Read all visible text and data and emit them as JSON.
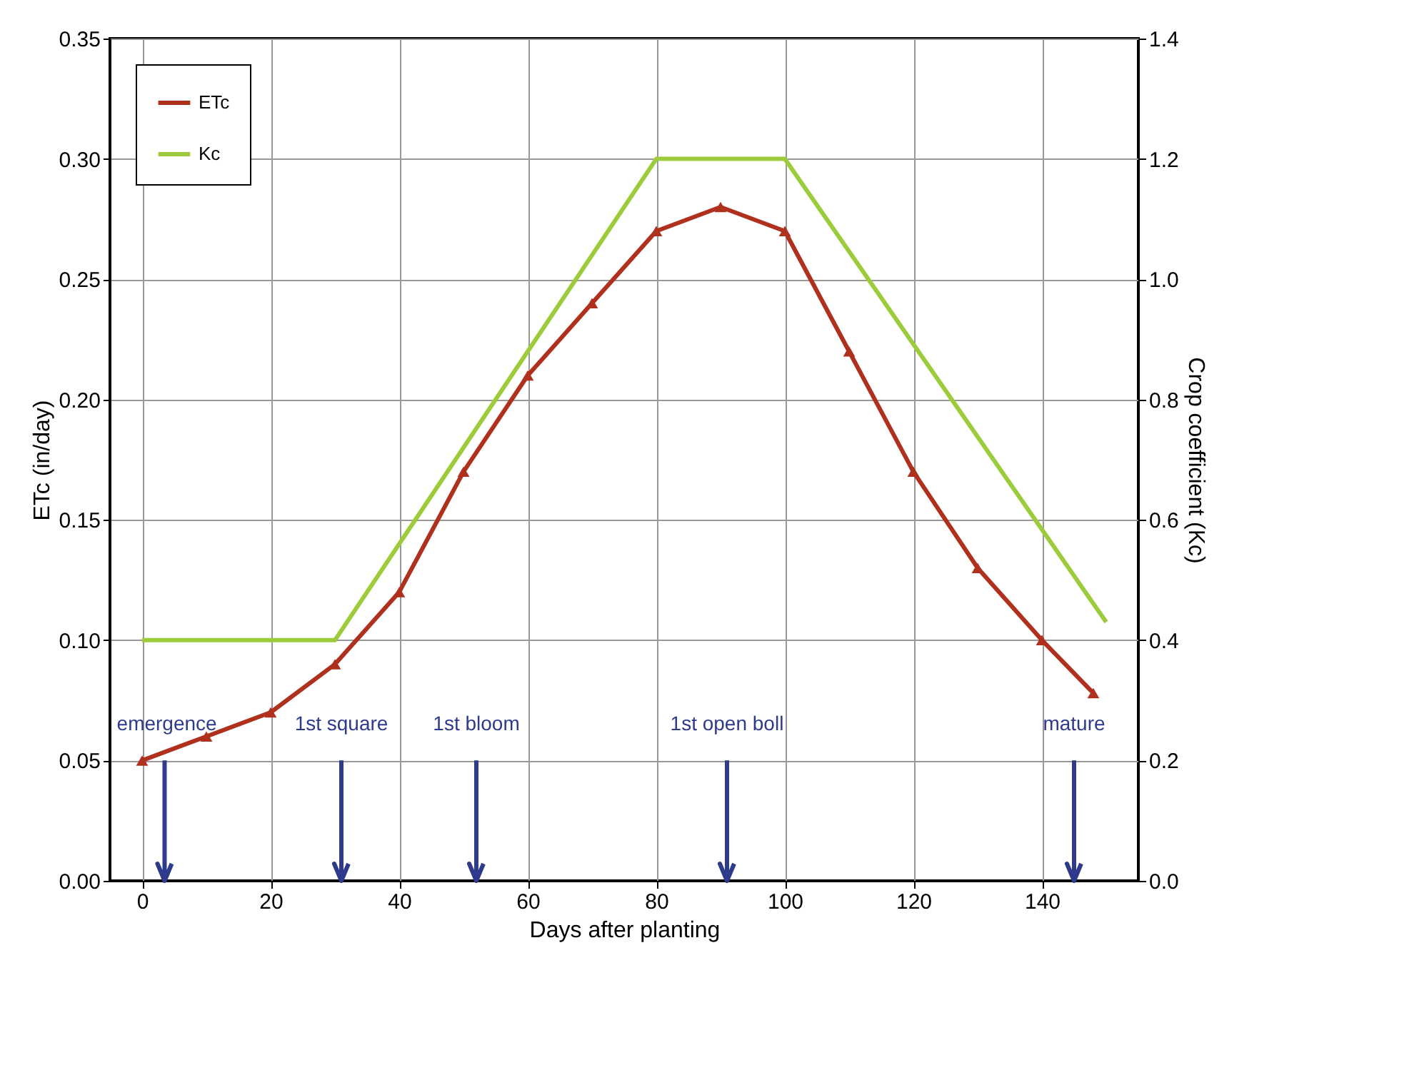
{
  "chart_data": {
    "type": "line",
    "xlabel": "Days after planting",
    "ylabel": "ETc (in/day)",
    "y2label": "Crop coefficient (Kc)",
    "xlim": [
      -5,
      155
    ],
    "xticks": [
      0,
      20,
      40,
      60,
      80,
      100,
      120,
      140
    ],
    "ylim": [
      0,
      0.35
    ],
    "yticks": [
      {
        "value": 0,
        "label": "0.00"
      },
      {
        "value": 0.05,
        "label": "0.05"
      },
      {
        "value": 0.1,
        "label": "0.10"
      },
      {
        "value": 0.15,
        "label": "0.15"
      },
      {
        "value": 0.2,
        "label": "0.20"
      },
      {
        "value": 0.25,
        "label": "0.25"
      },
      {
        "value": 0.3,
        "label": "0.30"
      },
      {
        "value": 0.35,
        "label": "0.35"
      }
    ],
    "y2lim": [
      0,
      1.4
    ],
    "y2ticks": [
      {
        "value": 0,
        "label": "0.0"
      },
      {
        "value": 0.2,
        "label": "0.2"
      },
      {
        "value": 0.4,
        "label": "0.4"
      },
      {
        "value": 0.6,
        "label": "0.6"
      },
      {
        "value": 0.8,
        "label": "0.8"
      },
      {
        "value": 1.0,
        "label": "1.0"
      },
      {
        "value": 1.2,
        "label": "1.2"
      },
      {
        "value": 1.4,
        "label": "1.4"
      }
    ],
    "grid": true,
    "legend": "top left",
    "line_style": "solid",
    "series": [
      {
        "name": "ETc",
        "color": "#b0301e",
        "marker": "triangle",
        "x": [
          0,
          10,
          20,
          30,
          40,
          50,
          60,
          70,
          80,
          90,
          100,
          110,
          120,
          130,
          140,
          148
        ],
        "values": [
          0.05,
          0.06,
          0.07,
          0.09,
          0.12,
          0.17,
          0.21,
          0.24,
          0.27,
          0.28,
          0.27,
          0.22,
          0.17,
          0.13,
          0.1,
          0.078
        ]
      },
      {
        "name": "Kc",
        "color": "#9ccc3c",
        "marker": "none",
        "axis": "y2",
        "x": [
          0,
          30,
          80,
          100,
          150
        ],
        "values": [
          0.4,
          0.4,
          1.2,
          1.2,
          0.43
        ]
      }
    ],
    "ref_lines": [
      {
        "axis": "x",
        "value": 3.5,
        "label": "emergence"
      },
      {
        "axis": "x",
        "value": 31,
        "label": "1st square"
      },
      {
        "axis": "x",
        "value": 52,
        "label": "1st bloom"
      },
      {
        "axis": "x",
        "value": 91,
        "label": "1st open  boll"
      },
      {
        "axis": "x",
        "value": 145,
        "label": "mature"
      }
    ]
  }
}
